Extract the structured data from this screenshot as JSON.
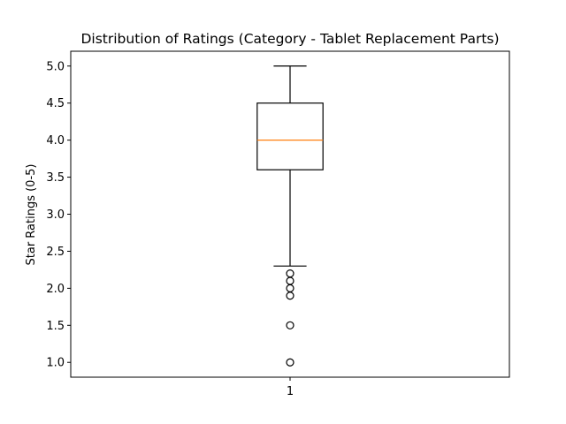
{
  "chart_data": {
    "type": "box",
    "title": "Distribution of Ratings (Category - Tablet Replacement Parts)",
    "xlabel": "",
    "ylabel": "Star Ratings (0-5)",
    "categories": [
      "1"
    ],
    "ylim": [
      0.8,
      5.2
    ],
    "yticks": [
      "1.0",
      "1.5",
      "2.0",
      "2.5",
      "3.0",
      "3.5",
      "4.0",
      "4.5",
      "5.0"
    ],
    "grid": false,
    "boxes": [
      {
        "category": "1",
        "whisker_low": 2.3,
        "q1": 3.6,
        "median": 4.0,
        "q3": 4.5,
        "whisker_high": 5.0,
        "outliers": [
          2.2,
          2.1,
          2.0,
          1.9,
          1.5,
          1.0
        ]
      }
    ],
    "colors": {
      "box": "#000000",
      "median": "#ff7f0e",
      "outlier": "#000000"
    }
  }
}
